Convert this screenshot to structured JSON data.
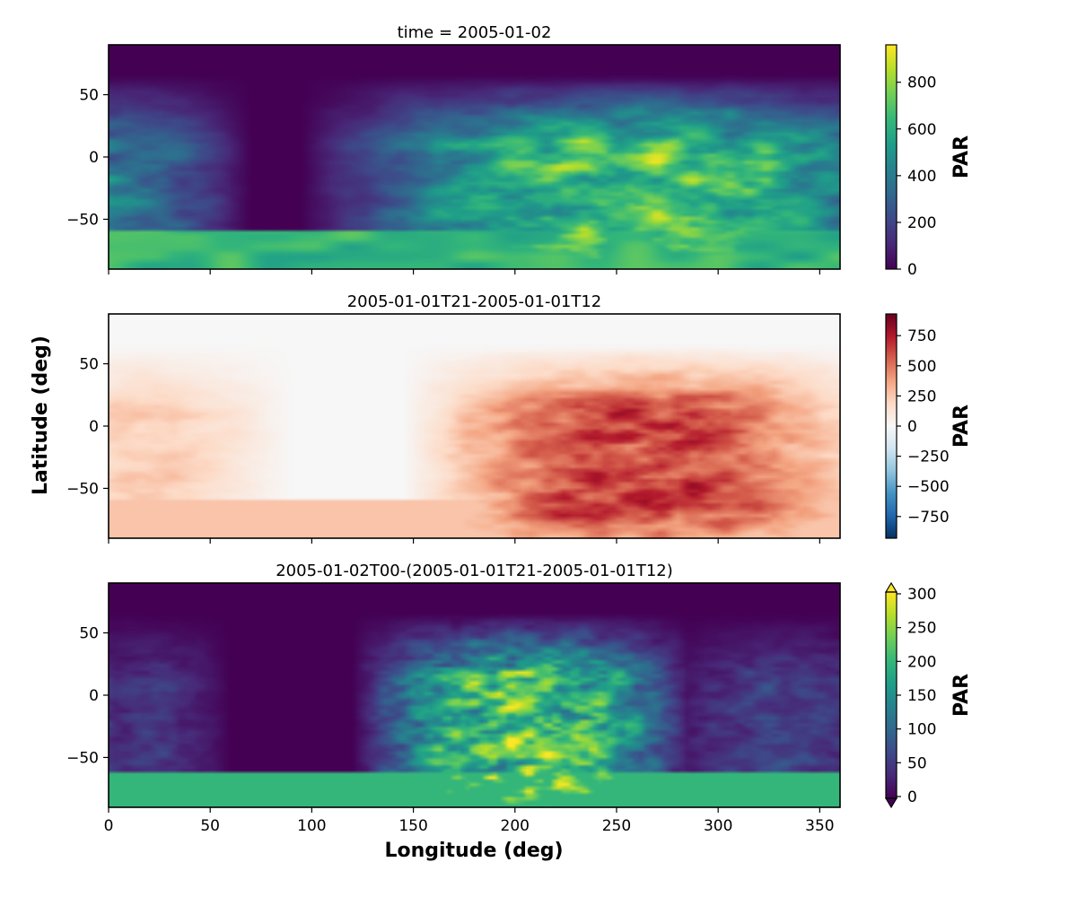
{
  "chart_data": [
    {
      "type": "heatmap",
      "title": "time = 2005-01-02",
      "xlim": [
        0,
        360
      ],
      "ylim": [
        -90,
        90
      ],
      "yticks": [
        -50,
        0,
        50
      ],
      "ytick_labels": [
        "−50",
        "0",
        "50"
      ],
      "xticks": [
        0,
        50,
        100,
        150,
        200,
        250,
        300,
        350
      ],
      "colormap": "viridis",
      "colorbar": {
        "label": "PAR",
        "range": [
          0,
          960
        ],
        "ticks": [
          0,
          200,
          400,
          600,
          800
        ],
        "tick_labels": [
          "0",
          "200",
          "400",
          "600",
          "800"
        ],
        "extend": "neither"
      }
    },
    {
      "type": "heatmap",
      "title": "2005-01-01T21-2005-01-01T12",
      "xlim": [
        0,
        360
      ],
      "ylim": [
        -90,
        90
      ],
      "yticks": [
        -50,
        0,
        50
      ],
      "ytick_labels": [
        "−50",
        "0",
        "50"
      ],
      "xticks": [
        0,
        50,
        100,
        150,
        200,
        250,
        300,
        350
      ],
      "colormap": "RdBu_r",
      "colorbar": {
        "label": "PAR",
        "range": [
          -930,
          930
        ],
        "ticks": [
          750,
          500,
          250,
          0,
          -250,
          -500,
          -750
        ],
        "tick_labels": [
          "750",
          "500",
          "250",
          "0",
          "−250",
          "−500",
          "−750"
        ],
        "extend": "neither"
      }
    },
    {
      "type": "heatmap",
      "title": "2005-01-02T00-(2005-01-01T21-2005-01-01T12)",
      "xlim": [
        0,
        360
      ],
      "ylim": [
        -90,
        90
      ],
      "yticks": [
        -50,
        0,
        50
      ],
      "ytick_labels": [
        "−50",
        "0",
        "50"
      ],
      "xticks": [
        0,
        50,
        100,
        150,
        200,
        250,
        300,
        350
      ],
      "xtick_labels": [
        "0",
        "50",
        "100",
        "150",
        "200",
        "250",
        "300",
        "350"
      ],
      "colormap": "viridis",
      "colorbar": {
        "label": "PAR",
        "range": [
          0,
          300
        ],
        "ticks": [
          0,
          50,
          100,
          150,
          200,
          250,
          300
        ],
        "tick_labels": [
          "0",
          "50",
          "100",
          "150",
          "200",
          "250",
          "300"
        ],
        "extend": "both"
      }
    }
  ],
  "figure": {
    "xlabel": "Longitude (deg)",
    "ylabel": "Latitude (deg)"
  }
}
